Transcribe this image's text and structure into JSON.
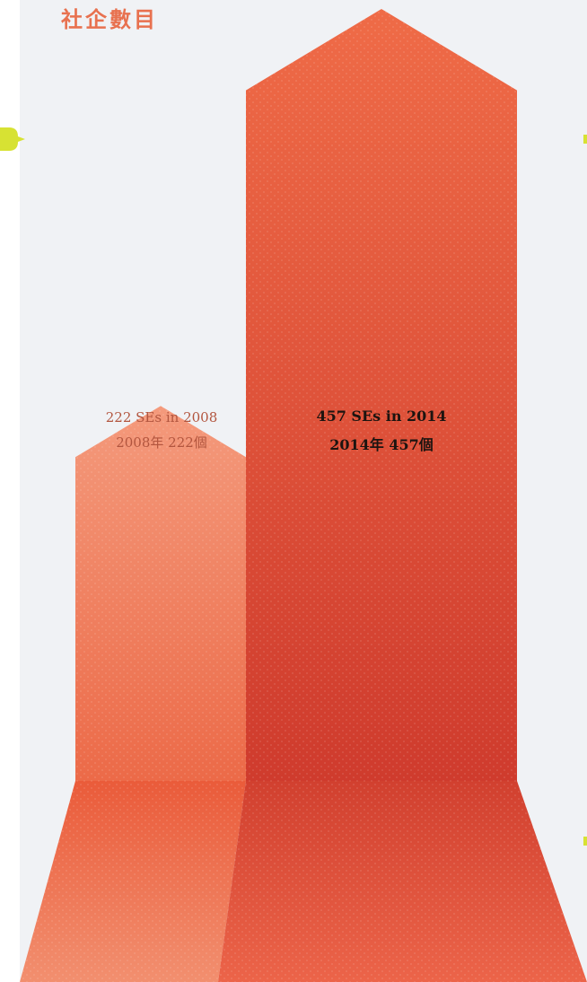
{
  "header": {
    "title": "社企數目"
  },
  "chart_data": {
    "type": "bar",
    "title": "社企數目",
    "categories": [
      "2008",
      "2014"
    ],
    "values": [
      222,
      457
    ],
    "labels": [
      {
        "en": "222 SEs in 2008",
        "zh": "2008年 222個"
      },
      {
        "en": "457 SEs in 2014",
        "zh": "2014年 457個"
      }
    ],
    "colors": {
      "series_2008_top": "#f49a7c",
      "series_2008_bottom": "#ec6a48",
      "series_2014_top": "#ef6b47",
      "series_2014_bottom": "#cf3b2d",
      "title": "#e8714f",
      "connector": "#d7e233"
    }
  }
}
